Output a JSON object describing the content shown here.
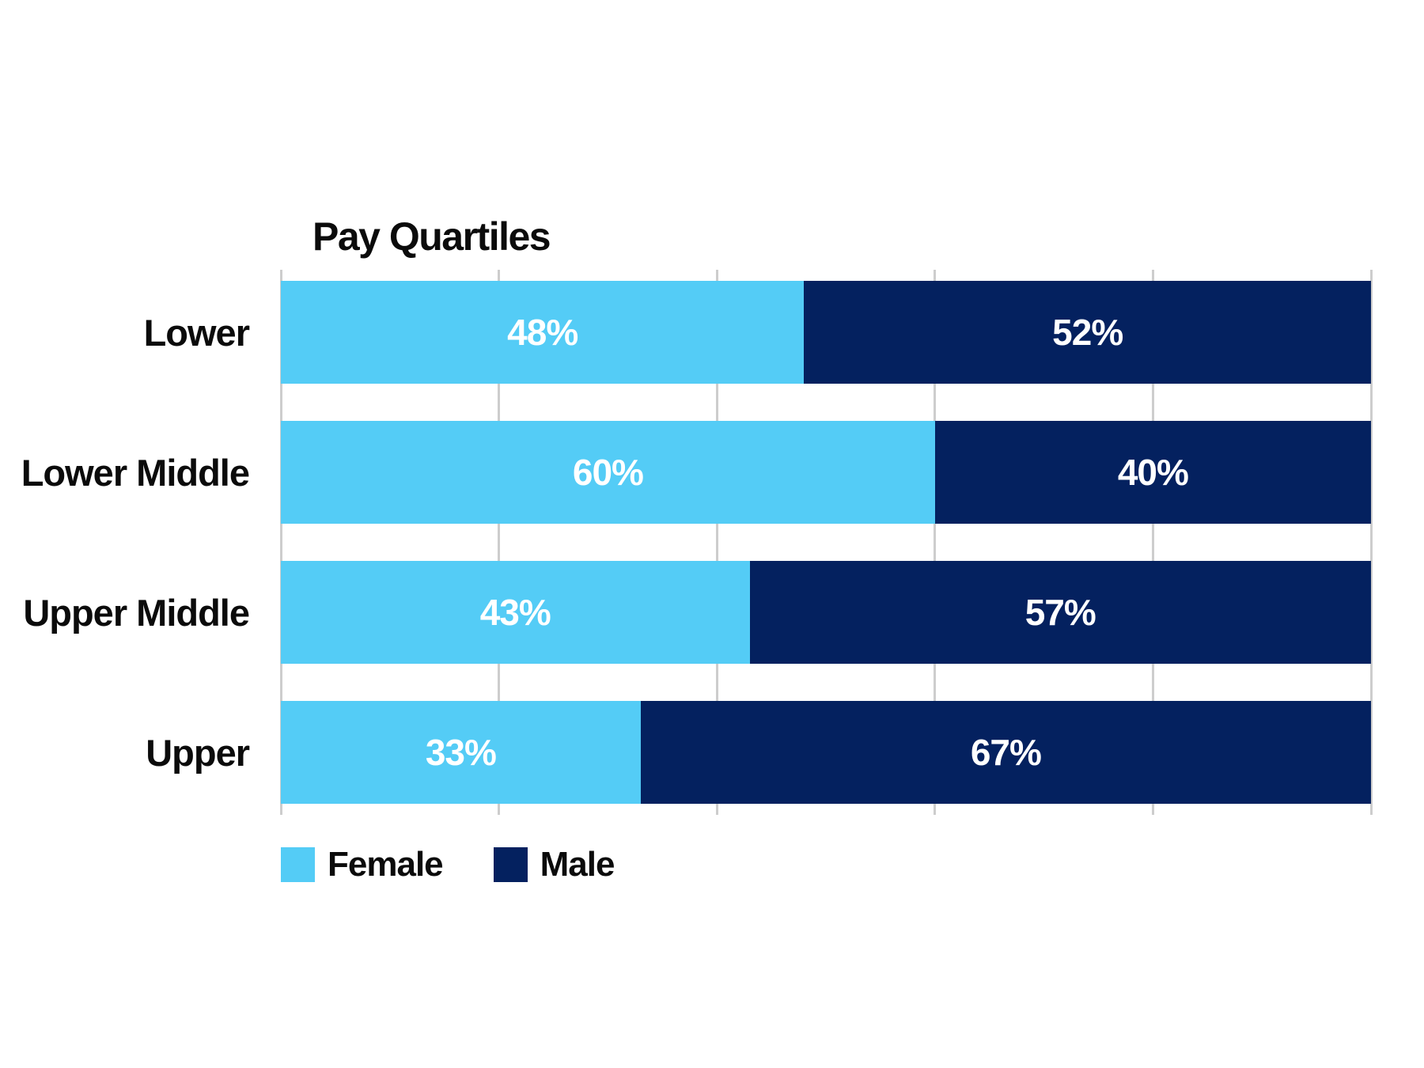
{
  "colors": {
    "female": "#54CCF6",
    "male": "#04215F",
    "gridline": "#CDCDCD",
    "text": "#0B0B0B",
    "value_text": "#FFFFFF",
    "background": "#FFFFFF"
  },
  "legend": {
    "items": [
      {
        "label": "Female",
        "color": "#54CCF6"
      },
      {
        "label": "Male",
        "color": "#04215F"
      }
    ]
  },
  "chart_data": {
    "type": "bar",
    "orientation": "horizontal",
    "stacked": true,
    "title": "Pay Quartiles",
    "categories": [
      "Lower",
      "Lower Middle",
      "Upper Middle",
      "Upper"
    ],
    "series": [
      {
        "name": "Female",
        "color": "#54CCF6",
        "values": [
          48,
          60,
          43,
          33
        ]
      },
      {
        "name": "Male",
        "color": "#04215F",
        "values": [
          52,
          40,
          57,
          67
        ]
      }
    ],
    "labels": [
      {
        "category": "Lower",
        "female": "48%",
        "male": "52%"
      },
      {
        "category": "Lower Middle",
        "female": "60%",
        "male": "40%"
      },
      {
        "category": "Upper Middle",
        "female": "43%",
        "male": "57%"
      },
      {
        "category": "Upper",
        "female": "33%",
        "male": "67%"
      }
    ],
    "unit": "%",
    "xlim": [
      0,
      100
    ],
    "x_ticks_percent": [
      0,
      20,
      40,
      60,
      80,
      100
    ],
    "grid": "vertical",
    "legend_position": "bottom-left"
  }
}
